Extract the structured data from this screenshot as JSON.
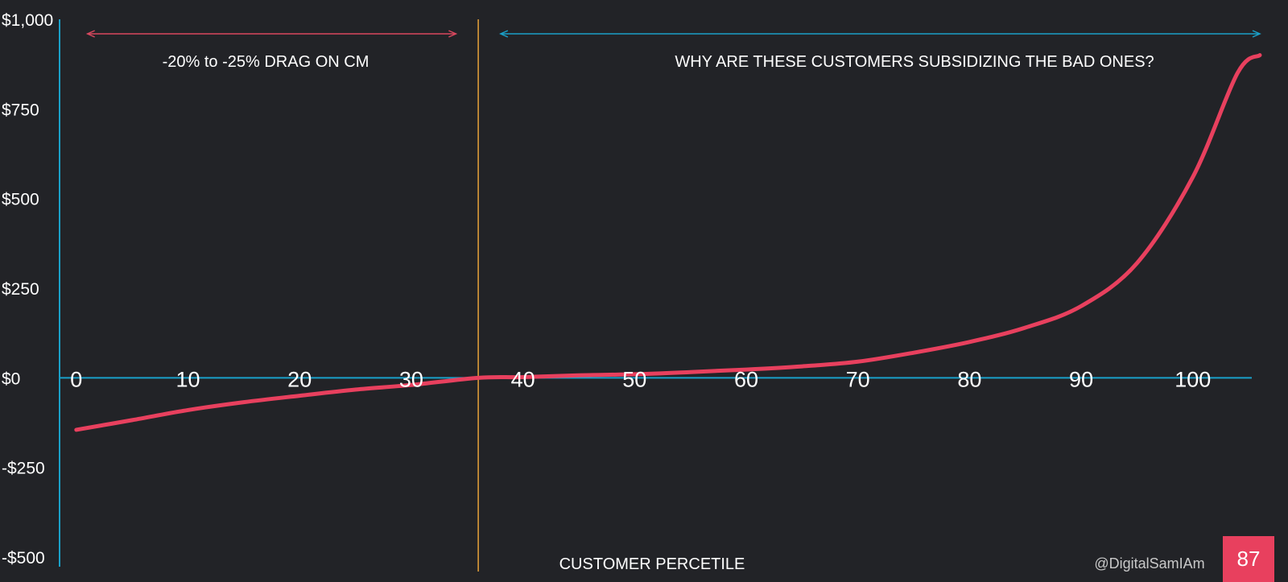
{
  "colors": {
    "background": "#222327",
    "axis": "#1aa0c8",
    "curve": "#e8405e",
    "divider": "#e8a23a",
    "left_arrow": "#d9485f",
    "right_arrow": "#1aa0c8",
    "page_badge": "#e8405e",
    "text": "#ffffff"
  },
  "annotations": {
    "left_text": "-20% to -25% DRAG ON CM",
    "right_text": "WHY ARE THESE CUSTOMERS SUBSIDIZING THE BAD ONES?"
  },
  "footer": {
    "handle": "@DigitalSamIAm",
    "page_number": "87"
  },
  "chart_data": {
    "type": "line",
    "title": "",
    "xlabel": "CUSTOMER PERCETILE",
    "ylabel": "",
    "xlim": [
      -1.5,
      106
    ],
    "ylim": [
      -500,
      1000
    ],
    "y_ticks": [
      1000,
      750,
      500,
      250,
      0,
      -250,
      -500
    ],
    "y_tick_labels": [
      "$1,000",
      "$750",
      "$500",
      "$250",
      "$0",
      "-$250",
      "-$500"
    ],
    "x_ticks": [
      0,
      10,
      20,
      30,
      40,
      50,
      60,
      70,
      80,
      90,
      100
    ],
    "x_tick_labels": [
      "0",
      "10",
      "20",
      "30",
      "40",
      "50",
      "60",
      "70",
      "80",
      "90",
      "100"
    ],
    "divider_x": 36,
    "left_arrow_range": [
      1,
      34
    ],
    "right_arrow_range": [
      38,
      106
    ],
    "grid": false,
    "series": [
      {
        "x": [
          0,
          5,
          10,
          15,
          20,
          25,
          30,
          36,
          40,
          45,
          50,
          55,
          60,
          65,
          70,
          75,
          80,
          85,
          90,
          95,
          100,
          104,
          106
        ],
        "values": [
          -145,
          -118,
          -90,
          -68,
          -50,
          -33,
          -20,
          0,
          2,
          7,
          10,
          16,
          23,
          32,
          45,
          70,
          100,
          140,
          200,
          320,
          560,
          850,
          900
        ]
      }
    ]
  }
}
